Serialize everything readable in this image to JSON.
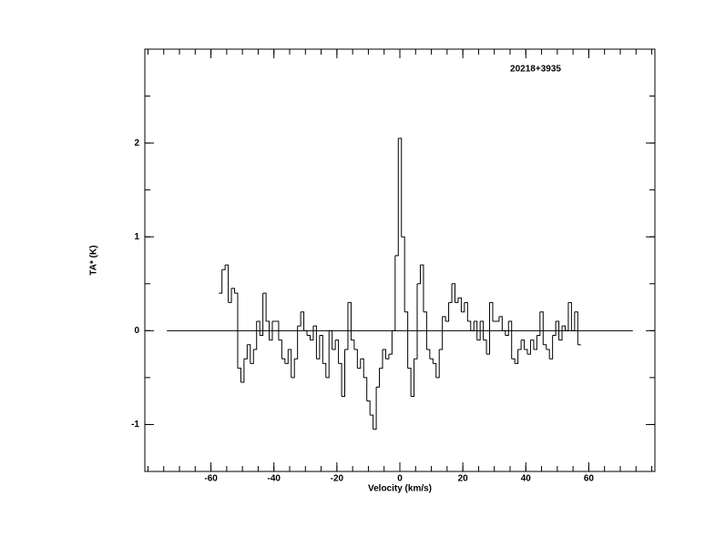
{
  "chart_data": {
    "type": "line",
    "step": "mid",
    "title": "20218+3935",
    "xlabel": "Velocity (km/s)",
    "ylabel": "TA* (K)",
    "xlim": [
      -81,
      81
    ],
    "ylim": [
      -1.5,
      3.0
    ],
    "xticks": [
      -60,
      -40,
      -20,
      0,
      20,
      40,
      60
    ],
    "xticks_minor": [
      -80,
      -75,
      -70,
      -65,
      -60,
      -55,
      -50,
      -45,
      -40,
      -35,
      -30,
      -25,
      -20,
      -15,
      -10,
      -5,
      0,
      5,
      10,
      15,
      20,
      25,
      30,
      35,
      40,
      45,
      50,
      55,
      60,
      65,
      70,
      75,
      80
    ],
    "yticks": [
      -1,
      0,
      1,
      2
    ],
    "yticks_minor": [
      -1.5,
      -1,
      -0.5,
      0,
      0.5,
      1,
      1.5,
      2,
      2.5,
      3
    ],
    "baseline": {
      "y": 0,
      "x": [
        -74,
        74
      ]
    },
    "color": "#000000",
    "x": [
      -57,
      -56,
      -55,
      -54,
      -53,
      -52,
      -51,
      -50,
      -49,
      -48,
      -47,
      -46,
      -45,
      -44,
      -43,
      -42,
      -41,
      -40,
      -39,
      -38,
      -37,
      -36,
      -35,
      -34,
      -33,
      -32,
      -31,
      -30,
      -29,
      -28,
      -27,
      -26,
      -25,
      -24,
      -23,
      -22,
      -21,
      -20,
      -19,
      -18,
      -17,
      -16,
      -15,
      -14,
      -13,
      -12,
      -11,
      -10,
      -9,
      -8,
      -7,
      -6,
      -5,
      -4,
      -3,
      -2,
      -1,
      0,
      1,
      2,
      3,
      4,
      5,
      6,
      7,
      8,
      9,
      10,
      11,
      12,
      13,
      14,
      15,
      16,
      17,
      18,
      19,
      20,
      21,
      22,
      23,
      24,
      25,
      26,
      27,
      28,
      29,
      30,
      31,
      32,
      33,
      34,
      35,
      36,
      37,
      38,
      39,
      40,
      41,
      42,
      43,
      44,
      45,
      46,
      47,
      48,
      49,
      50,
      51,
      52,
      53,
      54,
      55,
      56,
      57
    ],
    "values": [
      0.4,
      0.65,
      0.7,
      0.3,
      0.45,
      0.4,
      -0.4,
      -0.55,
      -0.3,
      -0.15,
      -0.35,
      -0.2,
      0.1,
      -0.05,
      0.4,
      0.1,
      -0.1,
      0.1,
      0.1,
      -0.1,
      -0.3,
      -0.35,
      -0.2,
      -0.5,
      -0.3,
      0.05,
      0.2,
      0.0,
      -0.05,
      -0.1,
      0.05,
      -0.3,
      -0.05,
      -0.35,
      -0.5,
      0.0,
      -0.2,
      -0.1,
      -0.35,
      -0.7,
      -0.2,
      0.3,
      -0.1,
      -0.2,
      -0.4,
      -0.3,
      -0.5,
      -0.75,
      -0.9,
      -1.05,
      -0.6,
      -0.4,
      -0.2,
      -0.3,
      -0.25,
      0.0,
      0.8,
      2.05,
      1.0,
      0.2,
      -0.4,
      -0.7,
      -0.3,
      0.5,
      0.7,
      0.2,
      -0.2,
      -0.3,
      -0.35,
      -0.5,
      -0.2,
      0.15,
      0.1,
      0.3,
      0.5,
      0.3,
      0.35,
      0.2,
      0.3,
      0.1,
      0.0,
      0.1,
      -0.1,
      0.1,
      -0.1,
      -0.25,
      0.3,
      0.1,
      0.1,
      0.15,
      0.0,
      -0.05,
      0.1,
      -0.3,
      -0.35,
      -0.2,
      -0.1,
      -0.2,
      -0.25,
      -0.1,
      -0.2,
      -0.05,
      0.2,
      -0.15,
      -0.2,
      -0.3,
      -0.05,
      0.1,
      -0.1,
      0.05,
      0.0,
      0.3,
      0.0,
      0.2,
      -0.15
    ]
  }
}
